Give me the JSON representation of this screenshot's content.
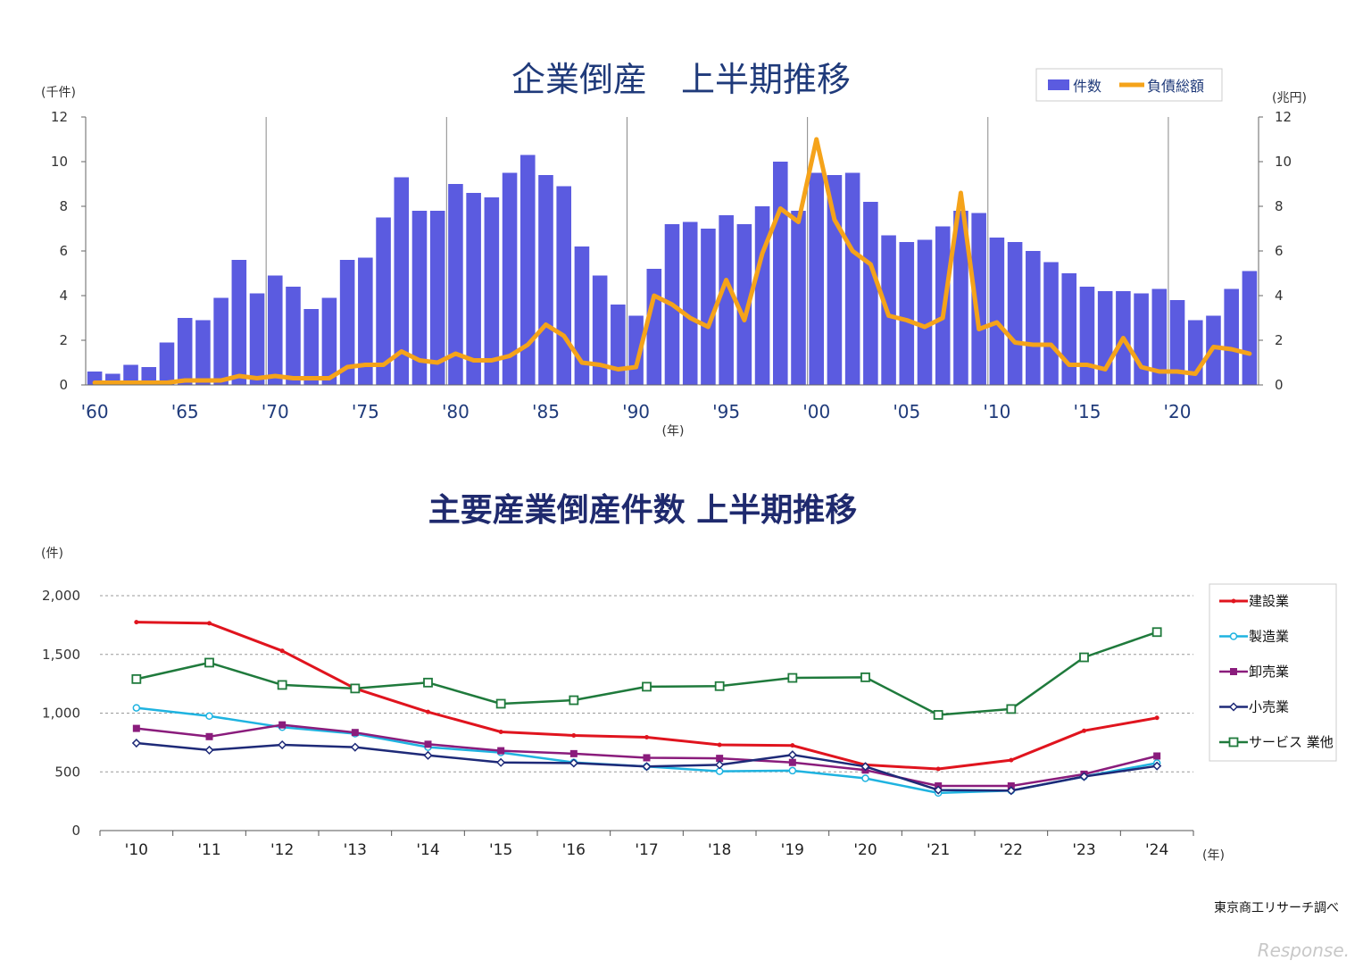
{
  "chart_data": [
    {
      "type": "bar",
      "title": "企業倒産　上半期推移",
      "ylabel_left": "(千件)",
      "ylabel_right": "(兆円)",
      "xlabel": "(年)",
      "ylim": [
        0,
        12
      ],
      "y_ticks": [
        "0",
        "2",
        "4",
        "6",
        "8",
        "10",
        "12"
      ],
      "y2lim": [
        0,
        12
      ],
      "y2_ticks": [
        "0",
        "2",
        "4",
        "6",
        "8",
        "10",
        "12"
      ],
      "x_tick_labels": [
        "'60",
        "'65",
        "'70",
        "'75",
        "'80",
        "'85",
        "'90",
        "'95",
        "'00",
        "'05",
        "'10",
        "'15",
        "'20"
      ],
      "legend_position": "top-right",
      "grid": "vertical lines every 10 years",
      "years": [
        1960,
        1961,
        1962,
        1963,
        1964,
        1965,
        1966,
        1967,
        1968,
        1969,
        1970,
        1971,
        1972,
        1973,
        1974,
        1975,
        1976,
        1977,
        1978,
        1979,
        1980,
        1981,
        1982,
        1983,
        1984,
        1985,
        1986,
        1987,
        1988,
        1989,
        1990,
        1991,
        1992,
        1993,
        1994,
        1995,
        1996,
        1997,
        1998,
        1999,
        2000,
        2001,
        2002,
        2003,
        2004,
        2005,
        2006,
        2007,
        2008,
        2009,
        2010,
        2011,
        2012,
        2013,
        2014,
        2015,
        2016,
        2017,
        2018,
        2019,
        2020,
        2021,
        2022,
        2023,
        2024
      ],
      "series": [
        {
          "name": "件数",
          "kind": "bar",
          "axis": "left",
          "color": "#5b5be0",
          "values": [
            0.6,
            0.5,
            0.9,
            0.8,
            1.9,
            3.0,
            2.9,
            3.9,
            5.6,
            4.1,
            4.9,
            4.4,
            3.4,
            3.9,
            5.6,
            5.7,
            7.5,
            9.3,
            7.8,
            7.8,
            9.0,
            8.6,
            8.4,
            9.5,
            10.3,
            9.4,
            8.9,
            6.2,
            4.9,
            3.6,
            3.1,
            5.2,
            7.2,
            7.3,
            7.0,
            7.6,
            7.2,
            8.0,
            10.0,
            7.8,
            9.5,
            9.4,
            9.5,
            8.2,
            6.7,
            6.4,
            6.5,
            7.1,
            7.8,
            7.7,
            6.6,
            6.4,
            6.0,
            5.5,
            5.0,
            4.4,
            4.2,
            4.2,
            4.1,
            4.3,
            3.8,
            2.9,
            3.1,
            4.3,
            5.1
          ]
        },
        {
          "name": "負債総額",
          "kind": "line",
          "axis": "right",
          "color": "#f5a31a",
          "values": [
            0.1,
            0.1,
            0.1,
            0.1,
            0.1,
            0.2,
            0.2,
            0.2,
            0.4,
            0.3,
            0.4,
            0.3,
            0.3,
            0.3,
            0.8,
            0.9,
            0.9,
            1.5,
            1.1,
            1.0,
            1.4,
            1.1,
            1.1,
            1.3,
            1.8,
            2.7,
            2.2,
            1.0,
            0.9,
            0.7,
            0.8,
            4.0,
            3.6,
            3.0,
            2.6,
            4.7,
            2.9,
            5.9,
            7.9,
            7.3,
            11.0,
            7.4,
            6.0,
            5.4,
            3.1,
            2.9,
            2.6,
            3.0,
            8.6,
            2.5,
            2.8,
            1.9,
            1.8,
            1.8,
            0.9,
            0.9,
            0.7,
            2.1,
            0.8,
            0.6,
            0.6,
            0.5,
            1.7,
            1.6,
            1.4
          ]
        }
      ]
    },
    {
      "type": "line",
      "title": "主要産業倒産件数 上半期推移",
      "ylabel": "(件)",
      "xlabel": "(年)",
      "ylim": [
        0,
        2000
      ],
      "y_ticks": [
        "0",
        "500",
        "1,000",
        "1,500",
        "2,000"
      ],
      "y_tick_values": [
        0,
        500,
        1000,
        1500,
        2000
      ],
      "categories": [
        "'10",
        "'11",
        "'12",
        "'13",
        "'14",
        "'15",
        "'16",
        "'17",
        "'18",
        "'19",
        "'20",
        "'21",
        "'22",
        "'23",
        "'24"
      ],
      "legend_position": "right",
      "grid": "dashed horizontal lines",
      "series": [
        {
          "name": "建設業",
          "color": "#e0141e",
          "marker": "dot",
          "values": [
            1775,
            1765,
            1530,
            1210,
            1010,
            840,
            810,
            795,
            730,
            725,
            560,
            525,
            600,
            850,
            960
          ]
        },
        {
          "name": "製造業",
          "color": "#1fb3e0",
          "marker": "circle",
          "values": [
            1045,
            975,
            880,
            825,
            710,
            665,
            580,
            545,
            505,
            510,
            445,
            320,
            340,
            460,
            575
          ]
        },
        {
          "name": "卸売業",
          "color": "#8a1c7c",
          "marker": "square",
          "values": [
            870,
            800,
            900,
            835,
            735,
            680,
            655,
            620,
            615,
            580,
            515,
            380,
            380,
            480,
            635
          ]
        },
        {
          "name": "小売業",
          "color": "#1e2a78",
          "marker": "diamond",
          "values": [
            745,
            685,
            730,
            710,
            640,
            580,
            575,
            545,
            560,
            645,
            545,
            345,
            340,
            460,
            550
          ]
        },
        {
          "name": "サービス 業他",
          "color": "#1f7a3c",
          "marker": "square-open",
          "values": [
            1290,
            1430,
            1240,
            1210,
            1260,
            1080,
            1110,
            1225,
            1230,
            1300,
            1305,
            985,
            1035,
            1475,
            1690
          ]
        }
      ]
    }
  ],
  "credits": {
    "source": "東京商工リサーチ調べ",
    "watermark": "Response."
  }
}
